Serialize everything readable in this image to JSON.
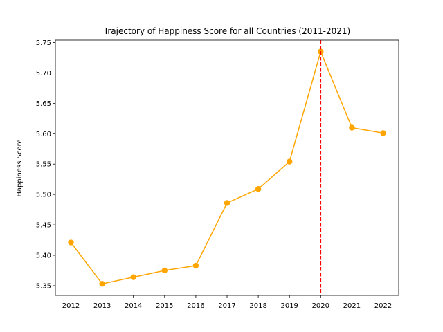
{
  "chart_data": {
    "type": "line",
    "title": "Trajectory of Happiness Score for all Countries (2011-2021)",
    "xlabel": "",
    "ylabel": "Happiness Score",
    "x": [
      "2012",
      "2013",
      "2014",
      "2015",
      "2016",
      "2017",
      "2018",
      "2019",
      "2020",
      "2021",
      "2022"
    ],
    "series": [
      {
        "values": [
          5.421,
          5.353,
          5.364,
          5.375,
          5.383,
          5.486,
          5.509,
          5.554,
          5.735,
          5.61,
          5.601
        ],
        "color": "#ffa500",
        "marker": "circle"
      }
    ],
    "yticks": [
      "5.35",
      "5.40",
      "5.45",
      "5.50",
      "5.55",
      "5.60",
      "5.65",
      "5.70",
      "5.75"
    ],
    "ylim": [
      5.334,
      5.754
    ],
    "vline": {
      "x": "2020",
      "color": "#ff0000",
      "style": "dashed"
    },
    "grid": false,
    "legend": "none"
  }
}
